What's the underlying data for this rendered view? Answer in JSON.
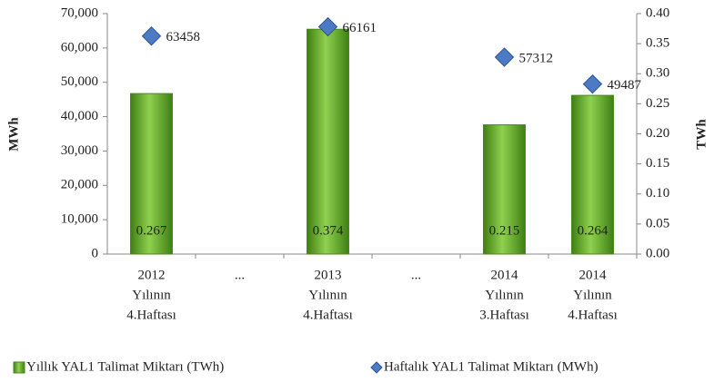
{
  "chart_data": {
    "type": "bar-line",
    "y_label": "MWh",
    "y2_label": "TWh",
    "categories": [
      [
        "2012",
        "Yılının",
        "4.Haftası"
      ],
      [
        "..."
      ],
      [
        "2013",
        "Yılının",
        "4.Haftası"
      ],
      [
        "..."
      ],
      [
        "2014",
        "Yılının",
        "3.Haftası"
      ],
      [
        "2014",
        "Yılının",
        "4.Haftası"
      ]
    ],
    "series": [
      {
        "name": "Yıllık YAL1 Talimat Miktarı (TWh)",
        "type": "bar",
        "axis": "y2",
        "color": "#66b032",
        "values": [
          0.267,
          null,
          0.374,
          null,
          0.215,
          0.264
        ]
      },
      {
        "name": "Haftalık YAL1 Talimat Miktarı (MWh)",
        "type": "scatter",
        "axis": "y",
        "color": "#4a7bc4",
        "values": [
          63458,
          null,
          66161,
          null,
          57312,
          49487
        ]
      }
    ],
    "ylim": [
      0,
      70000
    ],
    "yticks": [
      0,
      {
        "value": 10000,
        "label": "10,000"
      },
      {
        "value": 20000,
        "label": "20,000"
      },
      {
        "value": 30000,
        "label": "30,000"
      },
      {
        "value": 40000,
        "label": "40,000"
      },
      {
        "value": 50000,
        "label": "50,000"
      },
      {
        "value": 60000,
        "label": "60,000"
      },
      {
        "value": 70000,
        "label": "70,000"
      }
    ],
    "y2lim": [
      0,
      0.4
    ],
    "y2ticks": [
      {
        "value": 0,
        "label": "0.00"
      },
      0.05,
      {
        "value": 0.1,
        "label": "0.10"
      },
      0.15,
      {
        "value": 0.2,
        "label": "0.20"
      },
      0.25,
      {
        "value": 0.3,
        "label": "0.30"
      },
      0.35,
      {
        "value": 0.4,
        "label": "0.40"
      }
    ],
    "grid": false,
    "legend": "bottom"
  }
}
